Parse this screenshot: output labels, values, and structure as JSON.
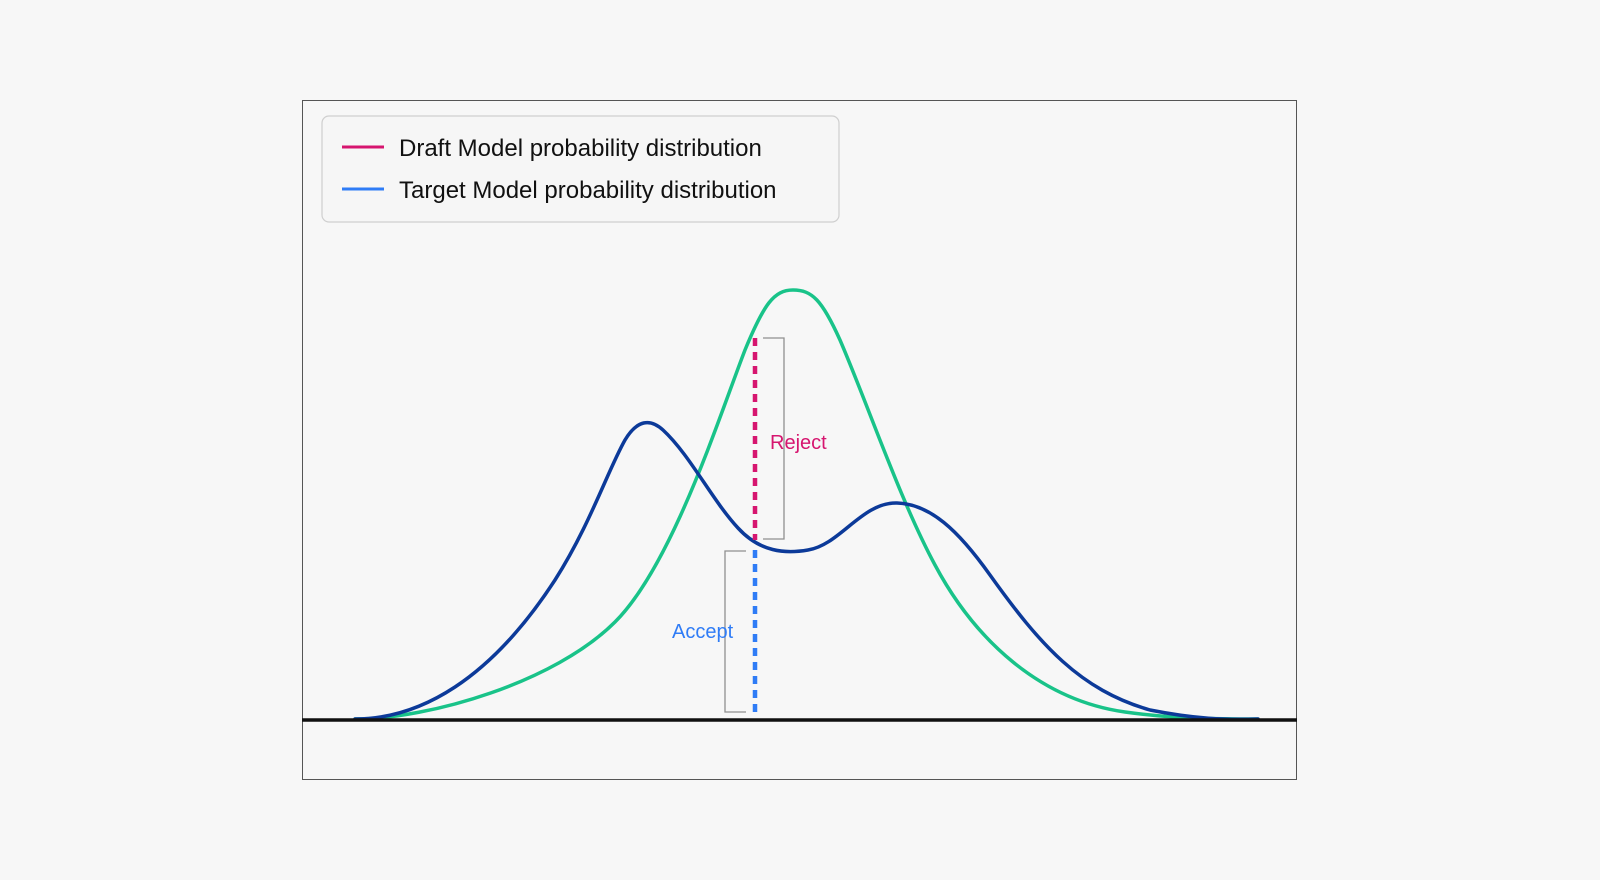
{
  "legend": {
    "items": [
      {
        "label": "Draft Model probability distribution",
        "color": "#d6156f"
      },
      {
        "label": "Target Model probability distribution",
        "color": "#2f7cf6"
      }
    ]
  },
  "annotations": {
    "reject_label": "Reject",
    "reject_color": "#d6156f",
    "accept_label": "Accept",
    "accept_color": "#2f7cf6"
  },
  "chart_data": {
    "type": "line",
    "title": "",
    "xlabel": "",
    "ylabel": "",
    "series": [
      {
        "color": "#0c3a99",
        "shape": "bimodal curve, tall left peak, lower right peak"
      },
      {
        "color": "#19c389",
        "shape": "unimodal curve, single tall central peak"
      }
    ],
    "grid": false,
    "legend_position": "top-left"
  }
}
